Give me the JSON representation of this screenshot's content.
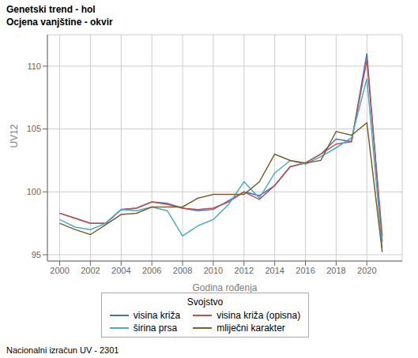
{
  "chart_data": {
    "type": "line",
    "title": "Genetski trend - hol",
    "subtitle": "Ocjena vanjštine - okvir",
    "x_label": "Godina rođenja",
    "y_label": "UV12",
    "annotations": [
      "Nacionalni izračun UV - 2301"
    ],
    "legend_title": "Svojstvo",
    "legend": "bottom",
    "grid": true,
    "x": [
      2000,
      2001,
      2002,
      2003,
      2004,
      2005,
      2006,
      2007,
      2008,
      2009,
      2010,
      2011,
      2012,
      2013,
      2014,
      2015,
      2016,
      2017,
      2018,
      2019,
      2020,
      2021
    ],
    "xlim": [
      1999.2,
      2022.3
    ],
    "xticks": [
      2000,
      2002,
      2004,
      2006,
      2008,
      2010,
      2012,
      2014,
      2016,
      2018,
      2020
    ],
    "ylim": [
      94.5,
      112.5
    ],
    "yticks": [
      95,
      100,
      105,
      110
    ],
    "series": [
      {
        "name": "visina križa",
        "color": "#4472C4",
        "values": [
          98.3,
          97.9,
          97.5,
          97.5,
          98.6,
          98.7,
          99.2,
          99.1,
          98.7,
          98.5,
          98.6,
          99.3,
          100.0,
          99.7,
          100.5,
          102.0,
          102.3,
          103.0,
          104.2,
          104.0,
          111.0,
          96.0
        ]
      },
      {
        "name": "visina križa (opisna)",
        "color": "#C0504D",
        "values": [
          98.3,
          97.9,
          97.5,
          97.5,
          98.6,
          98.7,
          99.2,
          99.0,
          98.7,
          98.6,
          98.7,
          99.2,
          100.0,
          99.4,
          100.5,
          102.0,
          102.3,
          103.0,
          103.8,
          104.0,
          110.5,
          96.5
        ]
      },
      {
        "name": "širina prsa",
        "color": "#4BACC6",
        "values": [
          97.8,
          97.2,
          97.0,
          97.5,
          98.6,
          98.5,
          98.8,
          98.5,
          96.5,
          97.3,
          97.8,
          99.0,
          100.8,
          99.5,
          101.5,
          102.5,
          102.2,
          102.8,
          103.5,
          104.3,
          109.0,
          95.5
        ]
      },
      {
        "name": "mliječni karakter",
        "color": "#7B5E2A",
        "values": [
          97.5,
          97.0,
          96.6,
          97.4,
          98.2,
          98.3,
          98.8,
          98.8,
          98.8,
          99.5,
          99.8,
          99.8,
          99.8,
          100.8,
          103.0,
          102.5,
          102.3,
          102.5,
          104.8,
          104.5,
          105.5,
          95.2
        ]
      }
    ]
  }
}
